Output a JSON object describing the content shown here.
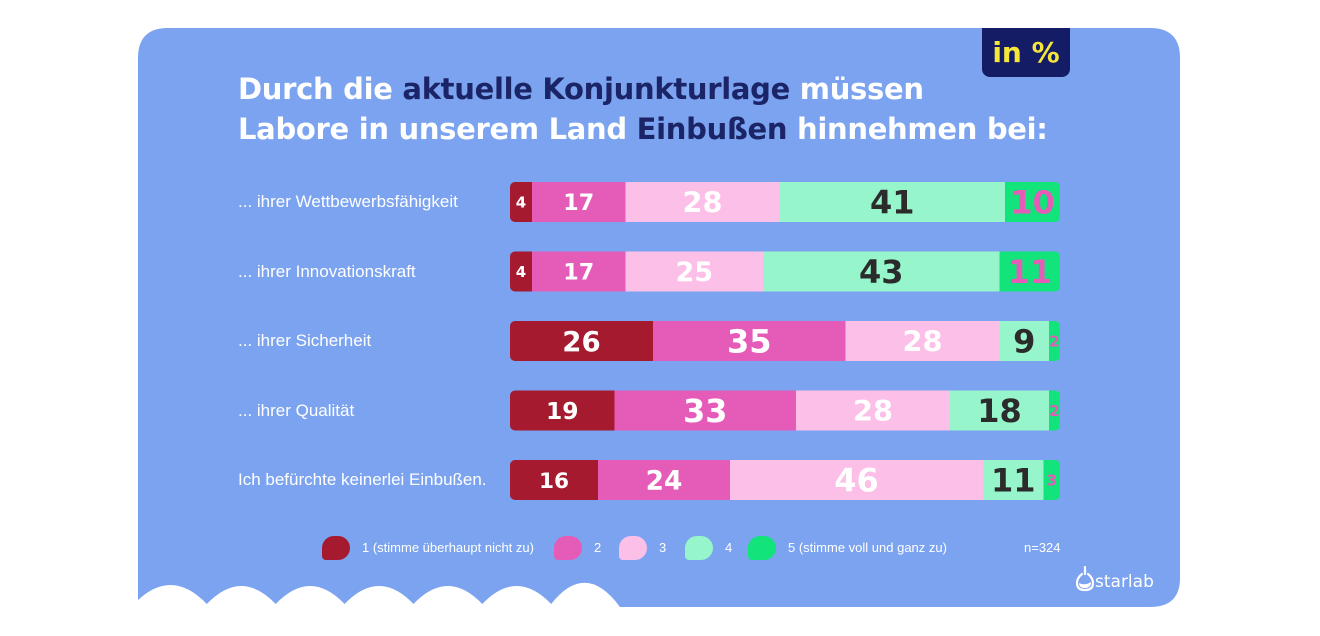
{
  "badge": "in %",
  "title": {
    "line1": [
      {
        "text": "Durch die ",
        "style": "w"
      },
      {
        "text": "aktuelle Konjunkturlage",
        "style": "d"
      },
      {
        "text": " müssen",
        "style": "w"
      }
    ],
    "line2": [
      {
        "text": "Labore in unserem Land ",
        "style": "w"
      },
      {
        "text": "Einbußen",
        "style": "d"
      },
      {
        "text": " hinnehmen bei:",
        "style": "w"
      }
    ]
  },
  "colors": [
    "#a51a2e",
    "#e55cb8",
    "#fbbfe8",
    "#97f5cb",
    "#13e37b"
  ],
  "text_colors": [
    "#ffffff",
    "#ffffff",
    "#ffffff",
    "#2b2b2b",
    "#e55cb8"
  ],
  "chart_data": {
    "type": "bar",
    "orientation": "horizontal",
    "stacked": true,
    "categories": [
      "... ihrer Wettbewerbsfähigkeit",
      "... ihrer Innovationskraft",
      "... ihrer Sicherheit",
      "... ihrer Qualität",
      "Ich befürchte keinerlei Einbußen."
    ],
    "series": [
      {
        "name": "1 (stimme überhaupt nicht zu)",
        "values": [
          4,
          4,
          26,
          19,
          16
        ]
      },
      {
        "name": "2",
        "values": [
          17,
          17,
          35,
          33,
          24
        ]
      },
      {
        "name": "3",
        "values": [
          28,
          25,
          28,
          28,
          46
        ]
      },
      {
        "name": "4",
        "values": [
          41,
          43,
          9,
          18,
          11
        ]
      },
      {
        "name": "5 (stimme voll und ganz zu)",
        "values": [
          10,
          11,
          2,
          2,
          3
        ]
      }
    ],
    "unit": "in %",
    "legend_position": "bottom",
    "note": "n=324"
  },
  "brand": "starlab"
}
